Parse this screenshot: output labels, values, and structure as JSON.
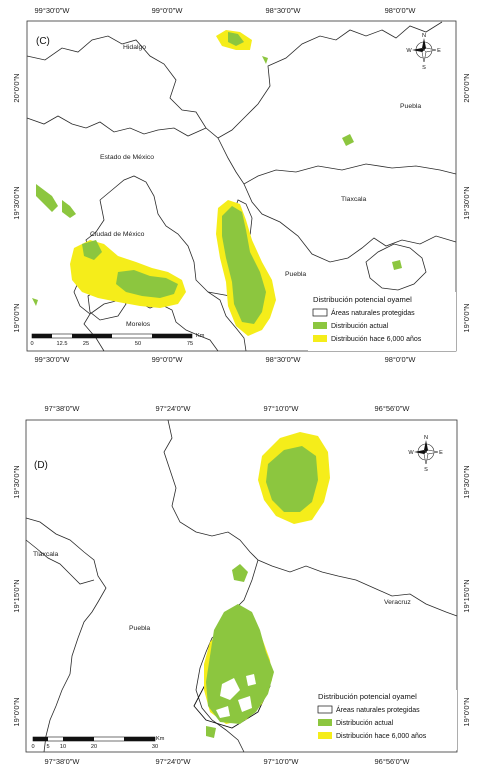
{
  "panelC": {
    "label": "(C)",
    "top_ticks": [
      "99°30'0\"W",
      "99°0'0\"W",
      "98°30'0\"W",
      "98°0'0\"W"
    ],
    "bottom_ticks": [
      "99°30'0\"W",
      "99°0'0\"W",
      "98°30'0\"W",
      "98°0'0\"W"
    ],
    "left_ticks": [
      "20°0'0\"N",
      "19°30'0\"N",
      "19°0'0\"N"
    ],
    "right_ticks": [
      "20°0'0\"N",
      "19°30'0\"N",
      "19°0'0\"N"
    ],
    "places": {
      "hidalgo": "Hidalgo",
      "puebla_n": "Puebla",
      "edomex": "Estado de México",
      "tlaxcala": "Tlaxcala",
      "cdmx": "Ciudad de México",
      "puebla_s": "Puebla",
      "morelos": "Morelos"
    },
    "legend": {
      "title": "Distribución potencial oyamel",
      "items": [
        "Áreas naturales protegidas",
        "Distribución actual",
        "Distribución hace 6,000 años"
      ]
    },
    "scalebar": {
      "labels": [
        "0",
        "12.5",
        "25",
        "50",
        "75"
      ],
      "unit": "Km"
    },
    "compass": {
      "n": "N",
      "s": "S",
      "e": "E",
      "w": "W"
    }
  },
  "panelD": {
    "label": "(D)",
    "top_ticks": [
      "97°38'0\"W",
      "97°24'0\"W",
      "97°10'0\"W",
      "96°56'0\"W"
    ],
    "bottom_ticks": [
      "97°38'0\"W",
      "97°24'0\"W",
      "97°10'0\"W",
      "96°56'0\"W"
    ],
    "left_ticks": [
      "19°30'0\"N",
      "19°15'0\"N",
      "19°0'0\"N"
    ],
    "right_ticks": [
      "19°30'0\"N",
      "19°15'0\"N",
      "19°0'0\"N"
    ],
    "places": {
      "tlaxcala": "Tlaxcala",
      "puebla": "Puebla",
      "veracruz": "Veracruz"
    },
    "legend": {
      "title": "Distribución potencial oyamel",
      "items": [
        "Áreas naturales protegidas",
        "Distribución actual",
        "Distribución hace 6,000 años"
      ]
    },
    "scalebar": {
      "labels": [
        "0",
        "5",
        "10",
        "20",
        "30"
      ],
      "unit": "Km"
    },
    "compass": {
      "n": "N",
      "s": "S",
      "e": "E",
      "w": "W"
    }
  },
  "colors": {
    "current": "#8cc63f",
    "past": "#f5ed1a",
    "protected_fill": "#ffffff"
  }
}
